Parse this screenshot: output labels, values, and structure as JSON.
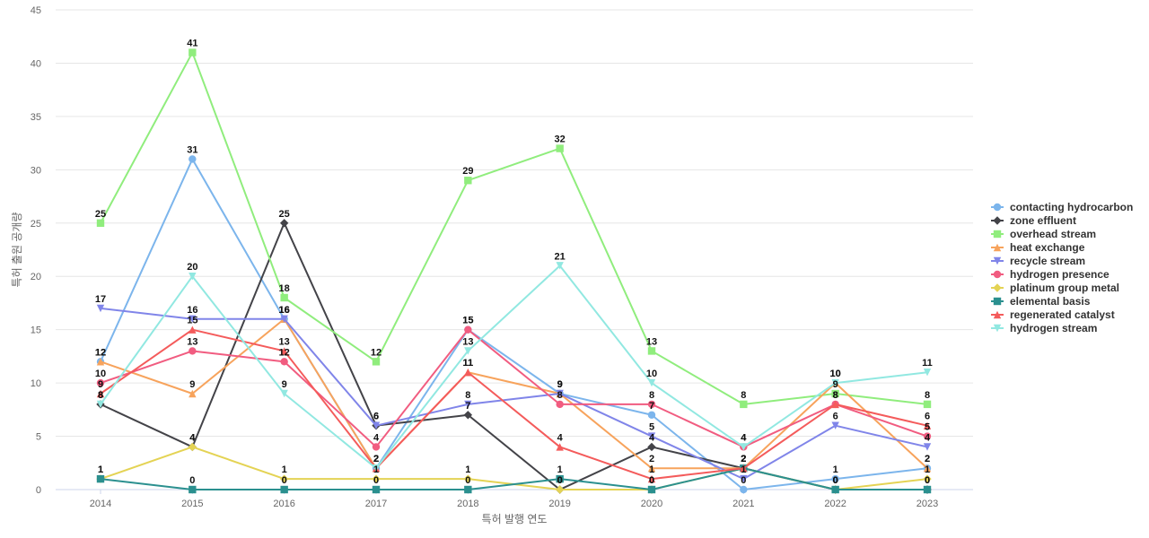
{
  "chart_data": {
    "type": "line",
    "title": "",
    "xlabel": "특허 발행 연도",
    "ylabel": "특허 출원 공개량",
    "ylim": [
      0,
      45
    ],
    "yticks": [
      0,
      5,
      10,
      15,
      20,
      25,
      30,
      35,
      40,
      45
    ],
    "grid": true,
    "legend_position": "right",
    "x": [
      "2014",
      "2015",
      "2016",
      "2017",
      "2018",
      "2019",
      "2020",
      "2021",
      "2022",
      "2023"
    ],
    "series": [
      {
        "name": "contacting hydrocarbon",
        "color": "#7cb5ec",
        "marker": "circle",
        "values": [
          12,
          31,
          16,
          2,
          15,
          9,
          7,
          0,
          1,
          2
        ]
      },
      {
        "name": "zone effluent",
        "color": "#434348",
        "marker": "diamond",
        "values": [
          8,
          4,
          25,
          6,
          7,
          0,
          4,
          2,
          0,
          0
        ]
      },
      {
        "name": "overhead stream",
        "color": "#90ed7d",
        "marker": "square",
        "values": [
          25,
          41,
          18,
          12,
          29,
          32,
          13,
          8,
          9,
          8
        ]
      },
      {
        "name": "heat exchange",
        "color": "#f7a35c",
        "marker": "triangle",
        "values": [
          12,
          9,
          16,
          2,
          11,
          9,
          2,
          2,
          10,
          2
        ]
      },
      {
        "name": "recycle stream",
        "color": "#8085e9",
        "marker": "triangle-down",
        "values": [
          17,
          16,
          16,
          6,
          8,
          9,
          5,
          1,
          6,
          4
        ]
      },
      {
        "name": "hydrogen presence",
        "color": "#f15c80",
        "marker": "circle",
        "values": [
          10,
          13,
          12,
          4,
          15,
          8,
          8,
          4,
          8,
          5
        ]
      },
      {
        "name": "platinum group metal",
        "color": "#e4d354",
        "marker": "diamond",
        "values": [
          1,
          4,
          1,
          1,
          1,
          0,
          0,
          2,
          0,
          1
        ]
      },
      {
        "name": "elemental basis",
        "color": "#2b908f",
        "marker": "square",
        "values": [
          1,
          0,
          0,
          0,
          0,
          1,
          0,
          2,
          0,
          0
        ]
      },
      {
        "name": "regenerated catalyst",
        "color": "#f45b5b",
        "marker": "triangle",
        "values": [
          9,
          15,
          13,
          2,
          11,
          4,
          1,
          2,
          8,
          6
        ]
      },
      {
        "name": "hydrogen stream",
        "color": "#91e8e1",
        "marker": "triangle-down",
        "values": [
          8,
          20,
          9,
          2,
          13,
          21,
          10,
          4,
          10,
          11
        ]
      }
    ]
  }
}
